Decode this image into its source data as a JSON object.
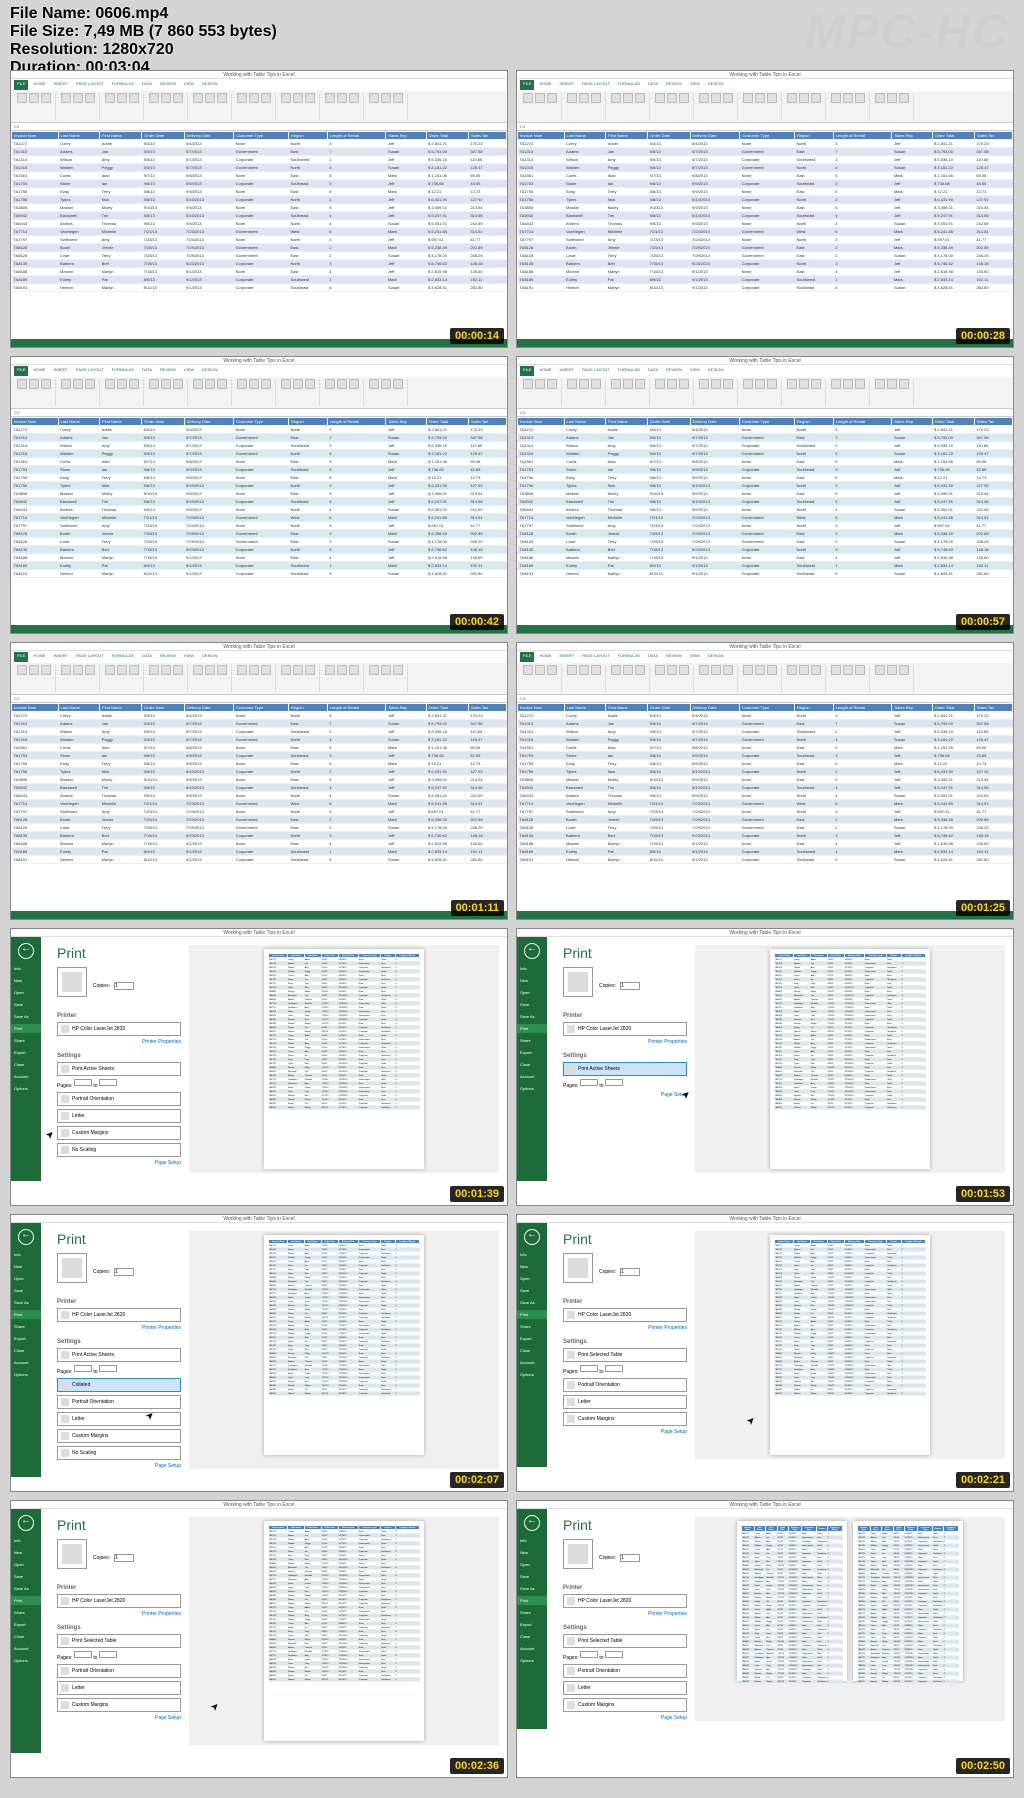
{
  "info": {
    "filename": "File Name: 0606.mp4",
    "filesize": "File Size: 7,49 MB (7 860 553 bytes)",
    "resolution": "Resolution: 1280x720",
    "duration": "Duration: 00:03:04"
  },
  "watermark": "MPC-HC",
  "timestamps": [
    "00:00:14",
    "00:00:28",
    "00:00:42",
    "00:00:57",
    "00:01:11",
    "00:01:25",
    "00:01:39",
    "00:01:53",
    "00:02:07",
    "00:02:21",
    "00:02:36",
    "00:02:50"
  ],
  "excel": {
    "title": "Working with Table Tips in Excel",
    "tabs": [
      "FILE",
      "HOME",
      "INSERT",
      "PAGE LAYOUT",
      "FORMULAS",
      "DATA",
      "REVIEW",
      "VIEW",
      "DESIGN"
    ],
    "cell_ref": "C3",
    "headers": [
      "Invoice Num",
      "Last Name",
      "First Name",
      "Order Date",
      "Delivery Date",
      "Customer Type",
      "Region",
      "Length of Rental",
      "Sales Rep",
      "Order Total",
      "Sales Tax"
    ],
    "rows": [
      [
        "TA1272",
        "Corey",
        "Addie",
        "5/3/13",
        "5/4/2013",
        "None",
        "North",
        "3",
        "Jeff",
        "$ 2,841.21",
        "170.23"
      ],
      [
        "TA1313",
        "Adams",
        "Jan",
        "5/5/13",
        "5/7/2013",
        "Government",
        "East",
        "7",
        "Susan",
        "$ 5,793.00",
        "347.58"
      ],
      [
        "TA1314",
        "Wilson",
        "Amy",
        "5/5/13",
        "5/7/2013",
        "Corporate",
        "Southwest",
        "2",
        "Jeff",
        "$ 5,335.10",
        "110.65"
      ],
      [
        "TA1315",
        "Walden",
        "Peggy",
        "5/5/13",
        "5/7/2013",
        "Government",
        "North",
        "4",
        "Susan",
        "$ 3,181.22",
        "125.47"
      ],
      [
        "TA1561",
        "Curtis",
        "Alan",
        "9/7/13",
        "9/8/2013",
        "None",
        "East",
        "5",
        "Mark",
        "$ 1,151.06",
        "69.06"
      ],
      [
        "TA1753",
        "Stone",
        "Ian",
        "9/8/13",
        "9/9/2013",
        "Corporate",
        "Southeast",
        "3",
        "Jeff",
        "$ 736.08",
        "43.65"
      ],
      [
        "TA1755",
        "Ewig",
        "Terry",
        "5/8/13",
        "9/9/2013",
        "None",
        "East",
        "6",
        "Mark",
        "$ 12.21",
        "13.73"
      ],
      [
        "TA1756",
        "Tykes",
        "Nick",
        "5/8/13",
        "5/10/2013",
        "Corporate",
        "North",
        "2",
        "Jeff",
        "$ 6,431.90",
        "127.92"
      ],
      [
        "TA3808",
        "Massei",
        "Muley",
        "9/10/13",
        "9/9/2013",
        "None",
        "East",
        "5",
        "Jeff",
        "$ 3,459.01",
        "213.54"
      ],
      [
        "TA5942",
        "Blackwell",
        "Tim",
        "5/8/13",
        "5/10/2013",
        "Corporate",
        "Southeast",
        "4",
        "Jeff",
        "$ 5,247.91",
        "314.56"
      ],
      [
        "TA6443",
        "Andres",
        "Thomas",
        "9/5/13",
        "9/9/2013",
        "None",
        "North",
        "4",
        "Susan",
        "$ 5,051.01",
        "242.69"
      ],
      [
        "TA7714",
        "VanHegen",
        "Michelle",
        "7/21/13",
        "7/23/2013",
        "Government",
        "West",
        "6",
        "Mark",
        "$ 5,241.85",
        "314.51"
      ],
      [
        "TA7797",
        "Swithome",
        "Amy",
        "7/23/13",
        "7/24/2013",
        "None",
        "North",
        "3",
        "Jeff",
        "$ 697.01",
        "41.77"
      ],
      [
        "TA8128",
        "Booth",
        "Jennie",
        "7/25/13",
        "7/29/2013",
        "Government",
        "East",
        "2",
        "Mark",
        "$ 5,338.49",
        "202.89"
      ],
      [
        "TA8128",
        "Lowe",
        "Terry",
        "7/25/13",
        "7/29/2013",
        "Government",
        "East",
        "2",
        "Susan",
        "$ 4,178.00",
        "248.29"
      ],
      [
        "TA8135",
        "Barkers",
        "Bert",
        "7/15/13",
        "9/23/2013",
        "Corporate",
        "North",
        "3",
        "Jeff",
        "$ 5,746.62",
        "148.18"
      ],
      [
        "TA8188",
        "Mannin",
        "Marlyn",
        "7/15/13",
        "9/1/2013",
        "None",
        "East",
        "4",
        "Jeff",
        "$ 2,619.98",
        "135.60"
      ],
      [
        "TA8189",
        "Eulety",
        "Pat",
        "8/9/13",
        "9/1/2013",
        "Corporate",
        "Southwest",
        "1",
        "Mark",
        "$ 2,833.14",
        "192.11"
      ],
      [
        "TA8191",
        "Helmet",
        "Marlyn",
        "8/11/13",
        "9/1/2013",
        "Corporate",
        "Southeast",
        "5",
        "Susan",
        "$ 4,628.51",
        "282.80"
      ]
    ],
    "sheet": "Detail",
    "sheet2": "Display Supplement"
  },
  "print": {
    "title": "Print",
    "sidebar": [
      "Info",
      "New",
      "Open",
      "Save",
      "Save As",
      "Print",
      "Share",
      "Export",
      "Close",
      "Account",
      "Options"
    ],
    "copies_label": "Copies:",
    "copies_value": "1",
    "print_btn": "Print",
    "printer_label": "Printer",
    "printer_name": "HP Color LaserJet 2820",
    "printer_props": "Printer Properties",
    "settings_label": "Settings",
    "setting_active": "Print Active Sheets",
    "setting_table": "Print Selected Table",
    "pages_label": "Pages:",
    "collated": "Collated",
    "portrait": "Portrait Orientation",
    "letter": "Letter",
    "margins": "Custom Margins",
    "scaling": "No Scaling",
    "page_setup": "Page Setup"
  }
}
